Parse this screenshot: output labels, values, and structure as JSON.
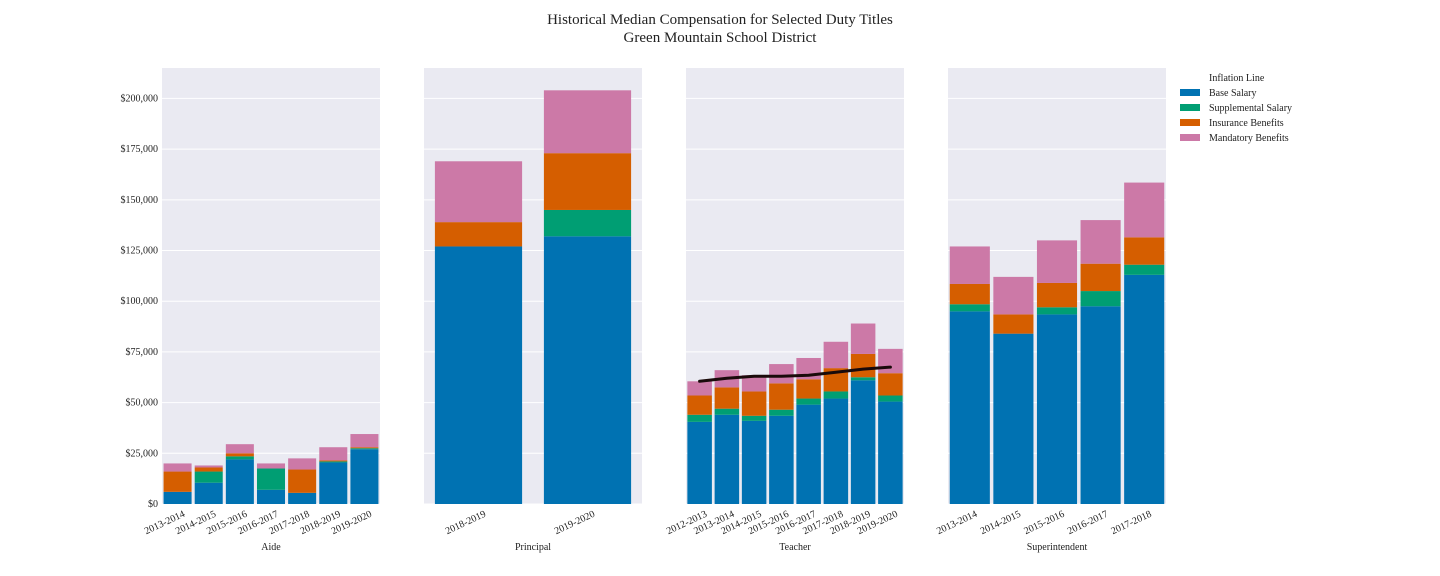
{
  "chart_data": {
    "type": "bar",
    "stacked": true,
    "title": "Historical Median Compensation for Selected Duty Titles",
    "subtitle": "Green Mountain School District",
    "ylim": [
      0,
      215000
    ],
    "yticks": [
      0,
      25000,
      50000,
      75000,
      100000,
      125000,
      150000,
      175000,
      200000
    ],
    "ytick_labels": [
      "$0",
      "$25,000",
      "$50,000",
      "$75,000",
      "$100,000",
      "$125,000",
      "$150,000",
      "$175,000",
      "$200,000"
    ],
    "grid": true,
    "legend_position": "top-right outside",
    "legend": [
      {
        "name": "Inflation Line",
        "type": "line",
        "color": "#1a0a0a"
      },
      {
        "name": "Base Salary",
        "type": "bar",
        "color": "#0072b2"
      },
      {
        "name": "Supplemental Salary",
        "type": "bar",
        "color": "#009e73"
      },
      {
        "name": "Insurance Benefits",
        "type": "bar",
        "color": "#d55e00"
      },
      {
        "name": "Mandatory Benefits",
        "type": "bar",
        "color": "#cc79a7"
      }
    ],
    "panels": [
      {
        "xlabel": "Aide",
        "categories": [
          "2013-2014",
          "2014-2015",
          "2015-2016",
          "2016-2017",
          "2017-2018",
          "2018-2019",
          "2019-2020"
        ],
        "series": [
          {
            "name": "Base Salary",
            "values": [
              6000,
              10500,
              22000,
              7000,
              5500,
              20500,
              27000
            ]
          },
          {
            "name": "Supplemental Salary",
            "values": [
              0,
              5500,
              1500,
              10500,
              0,
              500,
              500
            ]
          },
          {
            "name": "Insurance Benefits",
            "values": [
              10000,
              2000,
              1500,
              0,
              11500,
              500,
              500
            ]
          },
          {
            "name": "Mandatory Benefits",
            "values": [
              4000,
              1000,
              4500,
              2500,
              5500,
              6500,
              6500
            ]
          }
        ]
      },
      {
        "xlabel": "Principal",
        "categories": [
          "2018-2019",
          "2019-2020"
        ],
        "series": [
          {
            "name": "Base Salary",
            "values": [
              127000,
              132000
            ]
          },
          {
            "name": "Supplemental Salary",
            "values": [
              0,
              13000
            ]
          },
          {
            "name": "Insurance Benefits",
            "values": [
              12000,
              28000
            ]
          },
          {
            "name": "Mandatory Benefits",
            "values": [
              30000,
              31000
            ]
          }
        ]
      },
      {
        "xlabel": "Teacher",
        "categories": [
          "2012-2013",
          "2013-2014",
          "2014-2015",
          "2015-2016",
          "2016-2017",
          "2017-2018",
          "2018-2019",
          "2019-2020"
        ],
        "series": [
          {
            "name": "Base Salary",
            "values": [
              40500,
              44000,
              41000,
              43500,
              49000,
              52000,
              61000,
              50500
            ]
          },
          {
            "name": "Supplemental Salary",
            "values": [
              3500,
              3000,
              2500,
              3000,
              3000,
              3500,
              1500,
              3000
            ]
          },
          {
            "name": "Insurance Benefits",
            "values": [
              9500,
              10500,
              12000,
              13000,
              9500,
              11500,
              11500,
              11000
            ]
          },
          {
            "name": "Mandatory Benefits",
            "values": [
              7000,
              8500,
              8000,
              9500,
              10500,
              13000,
              15000,
              12000
            ]
          }
        ],
        "inflation_line": [
          60500,
          62000,
          63000,
          63000,
          63500,
          65000,
          66500,
          67500
        ]
      },
      {
        "xlabel": "Superintendent",
        "categories": [
          "2013-2014",
          "2014-2015",
          "2015-2016",
          "2016-2017",
          "2017-2018"
        ],
        "series": [
          {
            "name": "Base Salary",
            "values": [
              95000,
              84000,
              93500,
              97500,
              113000
            ]
          },
          {
            "name": "Supplemental Salary",
            "values": [
              3500,
              0,
              3500,
              7500,
              5000
            ]
          },
          {
            "name": "Insurance Benefits",
            "values": [
              10000,
              9500,
              12000,
              13500,
              13500
            ]
          },
          {
            "name": "Mandatory Benefits",
            "values": [
              18500,
              18500,
              21000,
              21500,
              27000
            ]
          }
        ]
      }
    ]
  }
}
